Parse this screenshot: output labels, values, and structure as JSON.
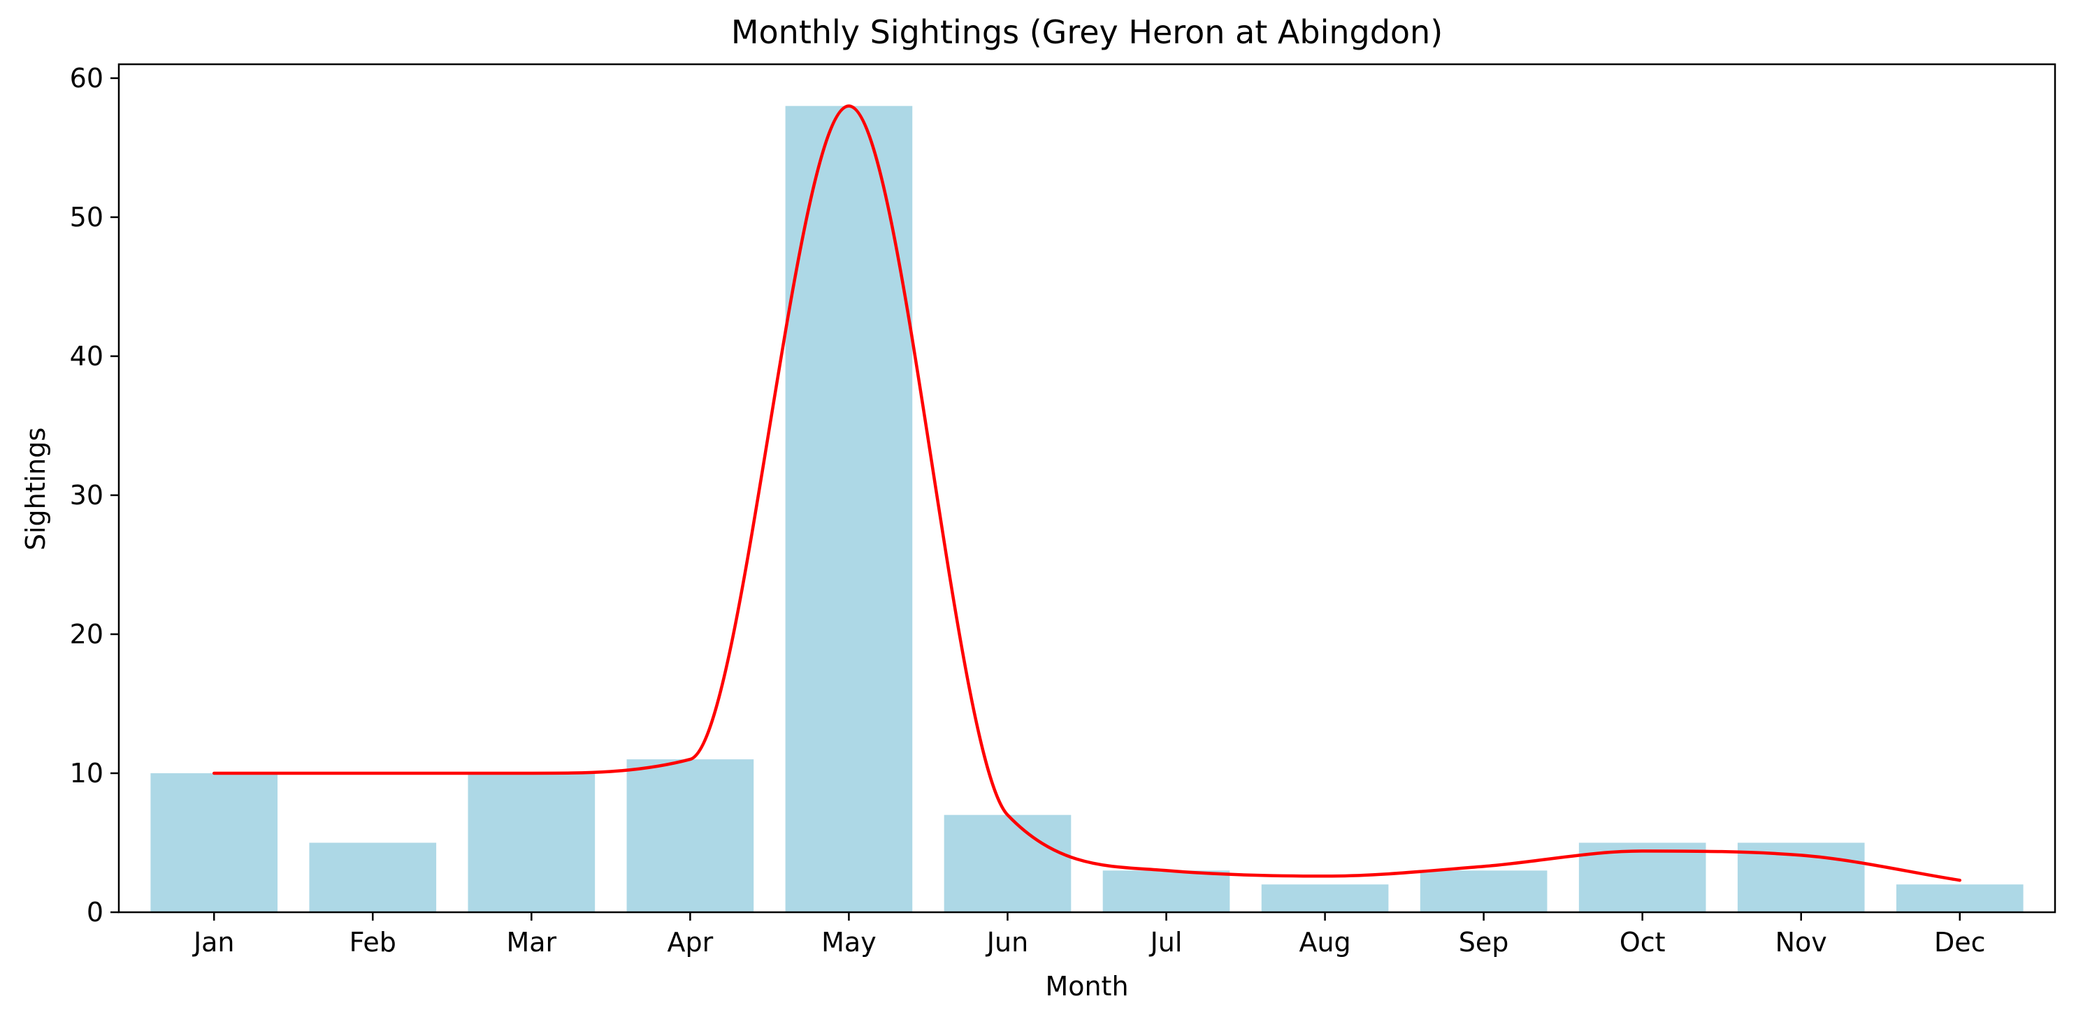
{
  "chart_data": {
    "type": "bar",
    "title": "Monthly Sightings (Grey Heron at Abingdon)",
    "xlabel": "Month",
    "ylabel": "Sightings",
    "categories": [
      "Jan",
      "Feb",
      "Mar",
      "Apr",
      "May",
      "Jun",
      "Jul",
      "Aug",
      "Sep",
      "Oct",
      "Nov",
      "Dec"
    ],
    "series": [
      {
        "type": "bar",
        "values": [
          10,
          5,
          10,
          11,
          58,
          7,
          3,
          2,
          3,
          5,
          5,
          2
        ],
        "color": "#add8e6"
      },
      {
        "type": "line",
        "smooth": true,
        "values": [
          10,
          10,
          10,
          11,
          58,
          7,
          3,
          2.6,
          3.3,
          4.4,
          4.1,
          2.3
        ],
        "color": "#ff0000"
      }
    ],
    "ylim": [
      0,
      61
    ],
    "yticks": [
      0,
      10,
      20,
      30,
      40,
      50,
      60
    ],
    "grid": false,
    "legend": "none"
  }
}
